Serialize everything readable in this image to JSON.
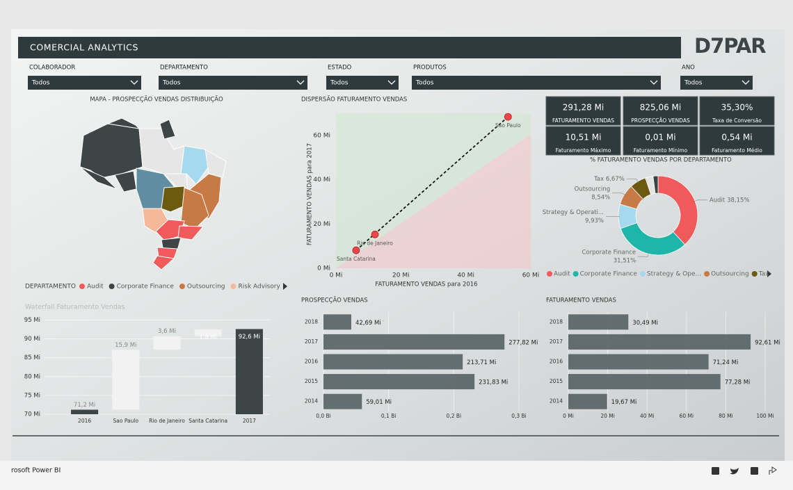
{
  "header": {
    "title": "COMERCIAL ANALYTICS",
    "logo": "D7PAR"
  },
  "filters": [
    {
      "label": "COLABORADOR",
      "value": "Todos"
    },
    {
      "label": "DEPARTAMENTO",
      "value": "Todos"
    },
    {
      "label": "ESTADO",
      "value": "Todos"
    },
    {
      "label": "PRODUTOS",
      "value": "Todos"
    },
    {
      "label": "ANO",
      "value": "Todos"
    }
  ],
  "kpis": [
    {
      "value": "291,28 Mi",
      "label": "FATURAMENTO VENDAS"
    },
    {
      "value": "825,06 Mi",
      "label": "PROSPECÇÃO VENDAS"
    },
    {
      "value": "35,30%",
      "label": "Taxa de Conversão"
    },
    {
      "value": "10,51 Mi",
      "label": "Faturamento Máximo"
    },
    {
      "value": "0,01 Mi",
      "label": "Faturamento Mínimo"
    },
    {
      "value": "0,54 Mi",
      "label": "Faturamento Médio"
    }
  ],
  "map": {
    "title": "MAPA - PROSPECÇÃO VENDAS DISTRIBUIÇÃO",
    "legend_title": "DEPARTAMENTO",
    "legend": [
      {
        "name": "Audit",
        "color": "#f05a5a"
      },
      {
        "name": "Corporate Finance",
        "color": "#3d4547"
      },
      {
        "name": "Outsourcing",
        "color": "#c77a45"
      },
      {
        "name": "Risk Advisory",
        "color": "#f5b99a"
      }
    ]
  },
  "chart_data": [
    {
      "type": "scatter",
      "title": "DISPERSÃO FATURAMENTO VENDAS",
      "x_label": "FATURAMENTO VENDAS para 2016",
      "y_label": "FATURAMENTO VENDAS para 2017",
      "categories": [
        "Sao Paulo",
        "Rio de Janeiro",
        "Santa Catarina"
      ],
      "x": [
        53,
        12,
        6.2
      ],
      "values": [
        68.4,
        15.3,
        8.1
      ],
      "color": "#e8474c",
      "xlim": [
        0,
        60
      ],
      "xticks": [
        {
          "value": 0,
          "label": "0 Mi"
        },
        {
          "value": 20,
          "label": "20 Mi"
        },
        {
          "value": 40,
          "label": "40 Mi"
        },
        {
          "value": 60,
          "label": "60 Mi"
        }
      ],
      "ylim": [
        0,
        70
      ],
      "yticks": [
        {
          "value": 0,
          "label": "0 Mi"
        },
        {
          "value": 20,
          "label": "20 Mi"
        },
        {
          "value": 40,
          "label": "40 Mi"
        },
        {
          "value": 60,
          "label": "60 Mi"
        }
      ],
      "trend_line": true
    },
    {
      "type": "donut",
      "title": "% FATURAMENTO VENDAS POR DEPARTAMENTO",
      "categories": [
        "Audit",
        "Corporate Finance",
        "Strategy & Operati...",
        "Outsourcing",
        "Tax 6,67%",
        null,
        null
      ],
      "values": [
        38.15,
        31.51,
        9.93,
        8.54,
        6.67,
        3.2,
        2.0
      ],
      "value_labels": [
        "38,15%",
        "31,51%",
        "9,93%",
        "8,54%",
        null,
        null,
        null
      ],
      "colors": [
        "#f05a5a",
        "#1fb5a8",
        "#a6d8ee",
        "#c77a45",
        "#6b5a10",
        "#e4e4e4",
        "#3a4446"
      ],
      "legend": [
        "Audit",
        "Corporate Finance",
        "Strategy & Ope...",
        "Outsourcing",
        "Tax"
      ]
    },
    {
      "type": "waterfall",
      "title": "Waterfall Faturamento Vendas",
      "categories": [
        "2016",
        "Sao Paulo",
        "Rio de Janeiro",
        "Santa Catarina",
        "2017"
      ],
      "values": [
        71.2,
        15.9,
        3.6,
        1.8,
        92.6
      ],
      "value_labels": [
        "71,2 Mi",
        "15,9 Mi",
        "3,6 Mi",
        "1,8 Mi",
        "92,6 Mi"
      ],
      "measure": [
        "absolute",
        "relative",
        "relative",
        "relative",
        "absolute"
      ],
      "colors": {
        "absolute": "#3d4547",
        "relative": "#f2f2f2"
      },
      "ylim": [
        70,
        96
      ],
      "yticks": [
        {
          "value": 70,
          "label": "70 Mi"
        },
        {
          "value": 75,
          "label": "75 Mi"
        },
        {
          "value": 80,
          "label": "80 Mi"
        },
        {
          "value": 85,
          "label": "85 Mi"
        },
        {
          "value": 90,
          "label": "90 Mi"
        },
        {
          "value": 95,
          "label": "95 Mi"
        }
      ]
    },
    {
      "type": "bar",
      "orientation": "horizontal",
      "title": "PROSPECÇÃO VENDAS",
      "categories": [
        "2018",
        "2017",
        "2016",
        "2015",
        "2014"
      ],
      "values": [
        0.04269,
        0.27782,
        0.21371,
        0.23183,
        0.05901
      ],
      "value_labels": [
        "42,69 Mi",
        "277,82 Mi",
        "213,71 Mi",
        "231,83 Mi",
        "59,01 Mi"
      ],
      "color": "#5d6769",
      "xlim": [
        0,
        0.3
      ],
      "xticks": [
        {
          "value": 0,
          "label": "0,0 Bi"
        },
        {
          "value": 0.1,
          "label": "0,1 Bi"
        },
        {
          "value": 0.2,
          "label": "0,2 Bi"
        },
        {
          "value": 0.3,
          "label": "0,3 Bi"
        }
      ]
    },
    {
      "type": "bar",
      "orientation": "horizontal",
      "title": "FATURAMENTO VENDAS",
      "categories": [
        "2018",
        "2017",
        "2016",
        "2015",
        "2014"
      ],
      "values": [
        30.49,
        92.61,
        71.24,
        77.28,
        19.67
      ],
      "value_labels": [
        "30,49 Mi",
        "92,61 Mi",
        "71,24 Mi",
        "77,28 Mi",
        "19,67 Mi"
      ],
      "color": "#5d6769",
      "xlim": [
        0,
        100
      ],
      "xticks": [
        {
          "value": 0,
          "label": "0 Mi"
        },
        {
          "value": 20,
          "label": "20 Mi"
        },
        {
          "value": 40,
          "label": "40 Mi"
        },
        {
          "value": 60,
          "label": "60 Mi"
        },
        {
          "value": 80,
          "label": "80 Mi"
        },
        {
          "value": 100,
          "label": "100 Mi"
        }
      ]
    }
  ],
  "footer": {
    "text": "rosoft Power BI"
  }
}
